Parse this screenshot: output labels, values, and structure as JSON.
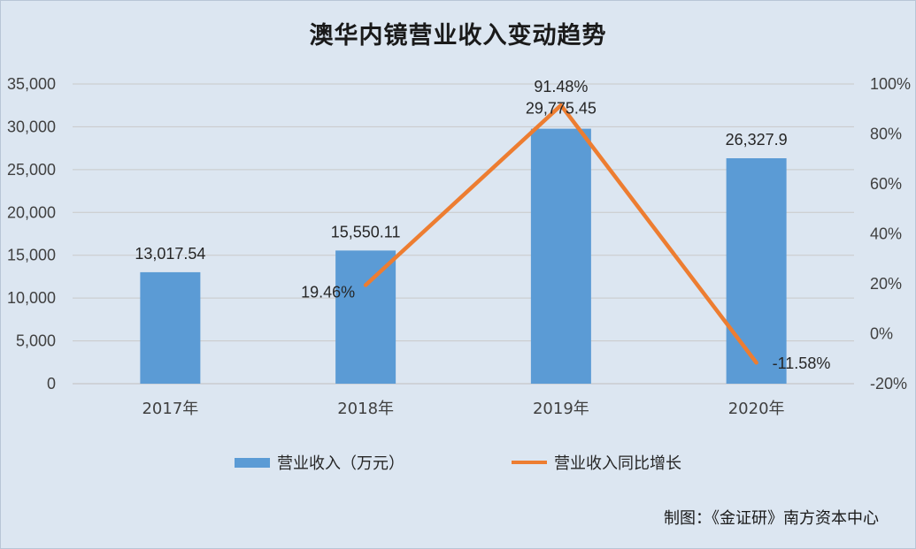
{
  "title": "澳华内镜营业收入变动趋势",
  "credit": "制图：《金证研》南方资本中心",
  "chart_data": {
    "type": "bar",
    "categories": [
      "2017年",
      "2018年",
      "2019年",
      "2020年"
    ],
    "series": [
      {
        "name": "营业收入（万元）",
        "type": "bar",
        "axis": "left",
        "values": [
          13017.54,
          15550.11,
          29775.45,
          26327.9
        ],
        "labels": [
          "13,017.54",
          "15,550.11",
          "29,775.45",
          "26,327.9"
        ],
        "color": "#5b9bd5"
      },
      {
        "name": "营业收入同比增长",
        "type": "line",
        "axis": "right",
        "values": [
          null,
          19.46,
          91.48,
          -11.58
        ],
        "labels": [
          "",
          "19.46%",
          "91.48%",
          "-11.58%"
        ],
        "color": "#ed7d31"
      }
    ],
    "left_axis": {
      "ylim": [
        0,
        35000
      ],
      "ticks": [
        "0",
        "5,000",
        "10,000",
        "15,000",
        "20,000",
        "25,000",
        "30,000",
        "35,000"
      ]
    },
    "right_axis": {
      "ylim": [
        -20,
        100
      ],
      "ticks": [
        "-20%",
        "0%",
        "20%",
        "40%",
        "60%",
        "80%",
        "100%"
      ]
    },
    "grid": true,
    "legend": "bottom"
  }
}
